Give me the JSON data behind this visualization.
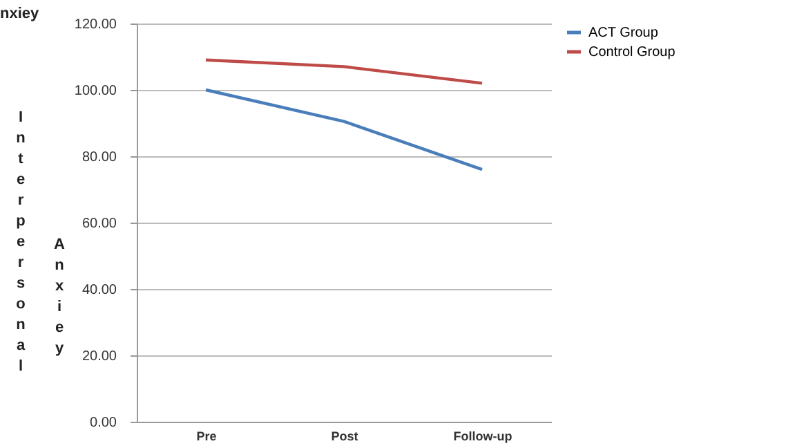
{
  "chart_data": {
    "type": "line",
    "ylabel": "Interpersonal Anxiey",
    "annotations": [
      "nxiey"
    ],
    "categories": [
      "Pre",
      "Post",
      "Follow-up"
    ],
    "series": [
      {
        "name": "ACT Group",
        "color": "#4a7ebb",
        "values": [
          100,
          90.5,
          76
        ]
      },
      {
        "name": "Control Group",
        "color": "#be4b48",
        "values": [
          109,
          107,
          102
        ]
      }
    ],
    "ylim": [
      0,
      120
    ],
    "yticks": [
      {
        "value": 0,
        "label": "0.00"
      },
      {
        "value": 20,
        "label": "20.00"
      },
      {
        "value": 40,
        "label": "40.00"
      },
      {
        "value": 60,
        "label": "60.00"
      },
      {
        "value": 80,
        "label": "80.00"
      },
      {
        "value": 100,
        "label": "100.00"
      },
      {
        "value": 120,
        "label": "120.00"
      }
    ],
    "grid": "y",
    "legend": "right",
    "marker": "none",
    "line_style": "solid"
  }
}
